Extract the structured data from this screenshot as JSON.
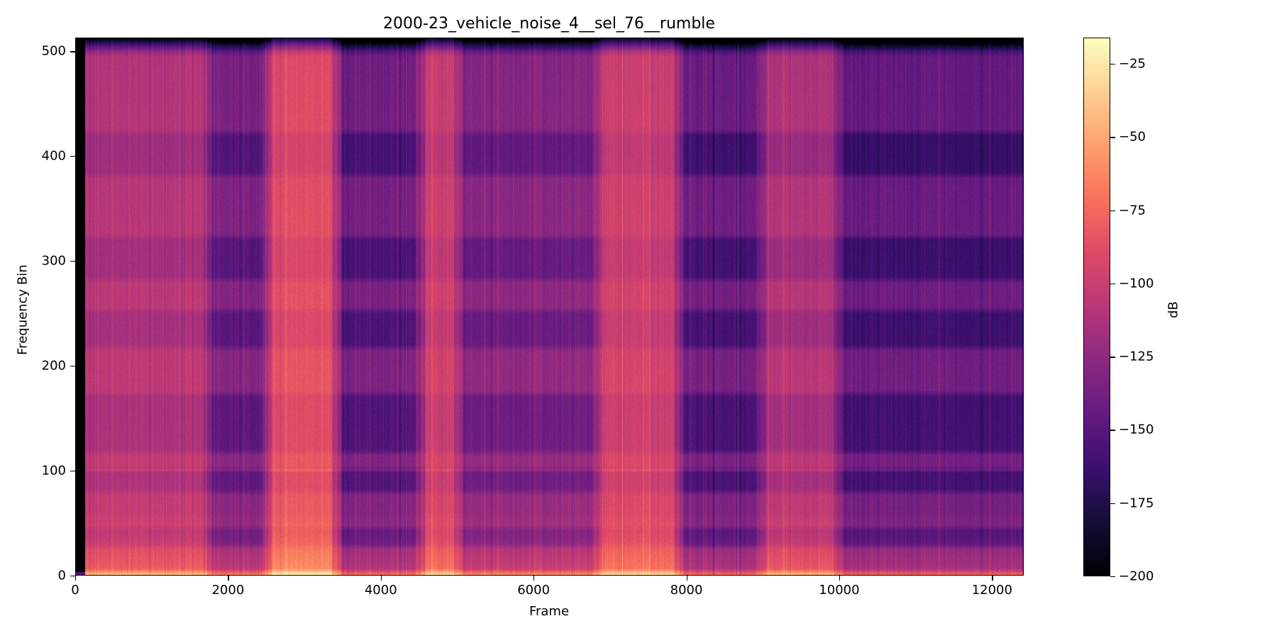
{
  "chart_data": {
    "type": "heatmap",
    "title": "2000-23_vehicle_noise_4__sel_76__rumble",
    "xlabel": "Frame",
    "ylabel": "Frequency Bin",
    "colorbar_label": "dB",
    "colormap": "magma",
    "xlim": [
      0,
      12415
    ],
    "ylim": [
      0,
      513
    ],
    "clim": [
      -200,
      -16
    ],
    "x_ticks": [
      0,
      2000,
      4000,
      6000,
      8000,
      10000,
      12000
    ],
    "y_ticks": [
      0,
      100,
      200,
      300,
      400,
      500
    ],
    "colorbar_ticks": [
      -25,
      -50,
      -75,
      -100,
      -125,
      -150,
      -175,
      -200
    ],
    "segments": [
      {
        "start": 0,
        "end": 120,
        "level_db": -200,
        "description": "silent lead-in (black)"
      },
      {
        "start": 120,
        "end": 1730,
        "level_db": -105,
        "description": "pink-magenta"
      },
      {
        "start": 1730,
        "end": 2515,
        "level_db": -130,
        "description": "dark purple"
      },
      {
        "start": 2515,
        "end": 3425,
        "level_db": -85,
        "description": "bright orange-pink"
      },
      {
        "start": 3425,
        "end": 4520,
        "level_db": -135,
        "description": "dark purple"
      },
      {
        "start": 4520,
        "end": 5020,
        "level_db": -95,
        "description": "pink-orange"
      },
      {
        "start": 5020,
        "end": 6850,
        "level_db": -125,
        "description": "purple mix"
      },
      {
        "start": 6850,
        "end": 7910,
        "level_db": -95,
        "description": "pink-orange"
      },
      {
        "start": 7910,
        "end": 8980,
        "level_db": -138,
        "description": "dark purple"
      },
      {
        "start": 8980,
        "end": 10000,
        "level_db": -108,
        "description": "pink-magenta"
      },
      {
        "start": 10000,
        "end": 12415,
        "level_db": -140,
        "description": "dark purple"
      }
    ],
    "dark_horizontal_bands_bins": [
      [
        30,
        42
      ],
      [
        82,
        98
      ],
      [
        120,
        170
      ],
      [
        220,
        250
      ],
      [
        285,
        320
      ],
      [
        385,
        420
      ]
    ],
    "bright_horizontal_lines_bins": [
      0,
      5,
      100
    ],
    "top_rolloff_bins": [
      495,
      513
    ],
    "low_freq_floor_db": -30
  },
  "axes": {
    "x_tick_labels": [
      "0",
      "2000",
      "4000",
      "6000",
      "8000",
      "10000",
      "12000"
    ],
    "y_tick_labels": [
      "0",
      "100",
      "200",
      "300",
      "400",
      "500"
    ],
    "colorbar_tick_labels": [
      "−25",
      "−50",
      "−75",
      "−100",
      "−125",
      "−150",
      "−175",
      "−200"
    ]
  }
}
